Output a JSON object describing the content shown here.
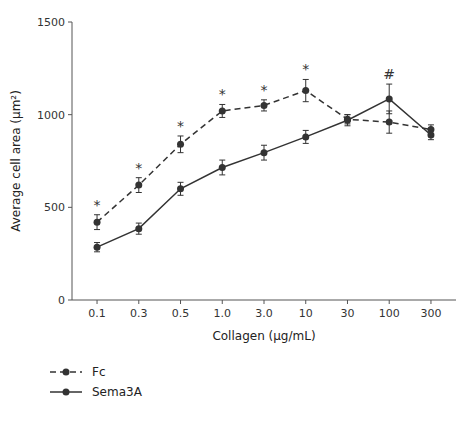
{
  "chart_data": {
    "type": "line",
    "xlabel": "Collagen (μg/mL)",
    "ylabel": "Average cell area (μm²)",
    "categories": [
      "0.1",
      "0.3",
      "0.5",
      "1.0",
      "3.0",
      "10",
      "30",
      "100",
      "300"
    ],
    "series": [
      {
        "name": "Fc",
        "color": "#333333",
        "line_style": "dashed",
        "marker": "circle",
        "values": [
          420,
          620,
          840,
          1020,
          1050,
          1130,
          975,
          960,
          920
        ],
        "errors": [
          40,
          40,
          45,
          35,
          30,
          60,
          25,
          60,
          25
        ]
      },
      {
        "name": "Sema3A",
        "color": "#333333",
        "line_style": "solid",
        "marker": "circle",
        "values": [
          285,
          385,
          600,
          715,
          795,
          880,
          970,
          1085,
          890
        ],
        "errors": [
          25,
          30,
          35,
          40,
          40,
          35,
          30,
          80,
          25
        ]
      }
    ],
    "annotations": [
      {
        "text": "*",
        "series": "Fc",
        "category": "0.1"
      },
      {
        "text": "*",
        "series": "Fc",
        "category": "0.3"
      },
      {
        "text": "*",
        "series": "Fc",
        "category": "0.5"
      },
      {
        "text": "*",
        "series": "Fc",
        "category": "1.0"
      },
      {
        "text": "*",
        "series": "Fc",
        "category": "3.0"
      },
      {
        "text": "*",
        "series": "Fc",
        "category": "10"
      },
      {
        "text": "#",
        "series": "Sema3A",
        "category": "100"
      }
    ],
    "ylim": [
      0,
      1500
    ],
    "yticks": [
      0,
      500,
      1000,
      1500
    ],
    "grid": false,
    "legend": "bottom"
  }
}
